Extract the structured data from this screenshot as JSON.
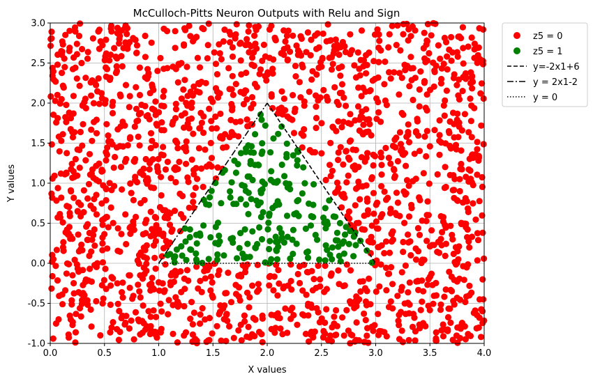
{
  "chart_data": {
    "type": "scatter",
    "title": "McCulloch-Pitts Neuron Outputs with Relu and Sign",
    "xlabel": "X values",
    "ylabel": "Y values",
    "xlim": [
      0.0,
      4.0
    ],
    "ylim": [
      -1.0,
      3.0
    ],
    "xticks": [
      "0.0",
      "0.5",
      "1.0",
      "1.5",
      "2.0",
      "2.5",
      "3.0",
      "3.5",
      "4.0"
    ],
    "yticks": [
      "-1.0",
      "-0.5",
      "0.0",
      "0.5",
      "1.0",
      "1.5",
      "2.0",
      "2.5",
      "3.0"
    ],
    "grid": true,
    "legend_position": "outside-top-right",
    "series": [
      {
        "name": "z5 = 0",
        "kind": "scatter",
        "color": "#ff0000"
      },
      {
        "name": "z5 = 1",
        "kind": "scatter",
        "color": "#008000"
      }
    ],
    "lines": [
      {
        "name": "y=-2x1+6",
        "style": "dashed",
        "color": "#000000",
        "x": [
          2.0,
          3.0
        ],
        "y": [
          2.0,
          0.0
        ]
      },
      {
        "name": "y = 2x1-2",
        "style": "dashdot",
        "color": "#000000",
        "x": [
          1.0,
          2.0
        ],
        "y": [
          0.0,
          2.0
        ]
      },
      {
        "name": "y = 0",
        "style": "dotted",
        "color": "#000000",
        "x": [
          1.0,
          3.0
        ],
        "y": [
          0.0,
          0.0
        ]
      }
    ],
    "point_distribution": {
      "note": "uniform random points over the axis range; class z5 = 1 inside triangle with vertices (1,0), (2,2), (3,0)",
      "count": 2000
    }
  }
}
